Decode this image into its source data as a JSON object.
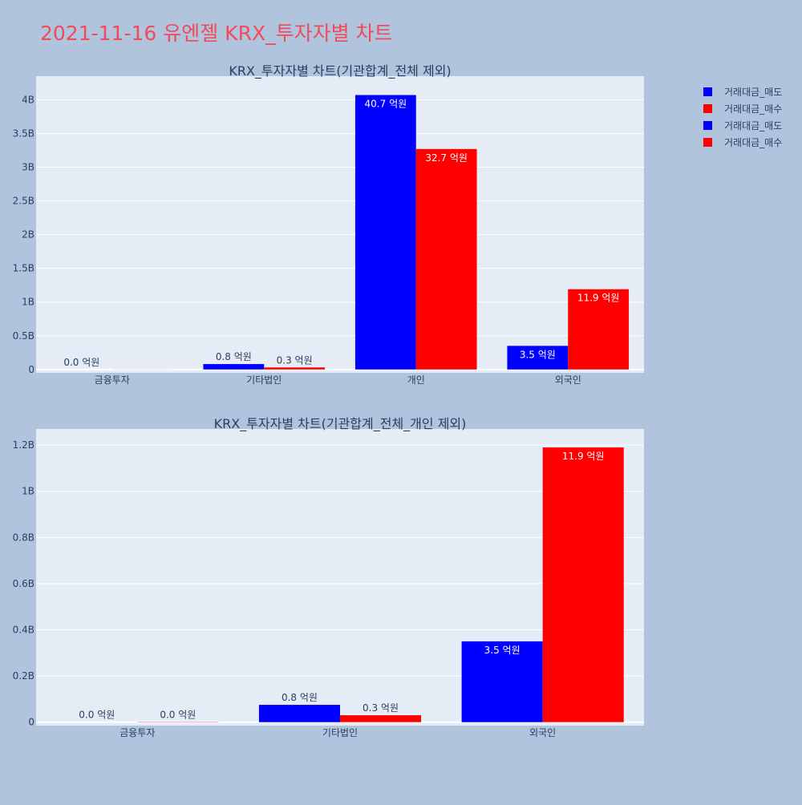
{
  "page_title": "2021-11-16 유엔젤 KRX_투자자별 차트",
  "colors": {
    "page_bg": "#b0c4de",
    "plot_bg": "#e5ecf6",
    "title": "#ef4b5b",
    "sell": "#0000ff",
    "buy": "#ff0000",
    "axis_text": "#2a3f5f"
  },
  "legend": {
    "position": "top-right",
    "items": [
      {
        "label": "거래대금_매도",
        "color": "#0000ff"
      },
      {
        "label": "거래대금_매수",
        "color": "#ff0000"
      },
      {
        "label": "거래대금_매도",
        "color": "#0000ff"
      },
      {
        "label": "거래대금_매수",
        "color": "#ff0000"
      }
    ]
  },
  "chart_data": [
    {
      "type": "bar",
      "title": "KRX_투자자별 차트(기관합계_전체 제외)",
      "categories": [
        "금융투자",
        "기타법인",
        "개인",
        "외국인"
      ],
      "series": [
        {
          "name": "거래대금_매도",
          "color": "#0000ff",
          "values": [
            0,
            0.08,
            4.07,
            0.35
          ],
          "labels": [
            "0.0 억원",
            "0.8 억원",
            "40.7 억원",
            "3.5 억원"
          ]
        },
        {
          "name": "거래대금_매수",
          "color": "#ff0000",
          "values": [
            0.001,
            0.03,
            3.27,
            1.19
          ],
          "labels": [
            "",
            "0.3 억원",
            "32.7 억원",
            "11.9 억원"
          ]
        }
      ],
      "ylim": [
        -0.05,
        4.35
      ],
      "yticks": [
        0,
        0.5,
        1,
        1.5,
        2,
        2.5,
        3,
        3.5,
        4
      ],
      "ytick_labels": [
        "0",
        "0.5B",
        "1B",
        "1.5B",
        "2B",
        "2.5B",
        "3B",
        "3.5B",
        "4B"
      ],
      "grid": true
    },
    {
      "type": "bar",
      "title": "KRX_투자자별 차트(기관합계_전체_개인 제외)",
      "categories": [
        "금융투자",
        "기타법인",
        "외국인"
      ],
      "series": [
        {
          "name": "거래대금_매도",
          "color": "#0000ff",
          "values": [
            0,
            0.075,
            0.35
          ],
          "labels": [
            "0.0 억원",
            "0.8 억원",
            "3.5 억원"
          ]
        },
        {
          "name": "거래대금_매수",
          "color": "#ff0000",
          "values": [
            0.001,
            0.03,
            1.19
          ],
          "labels": [
            "0.0 억원",
            "0.3 억원",
            "11.9 억원"
          ]
        }
      ],
      "ylim": [
        -0.015,
        1.27
      ],
      "yticks": [
        0,
        0.2,
        0.4,
        0.6,
        0.8,
        1,
        1.2
      ],
      "ytick_labels": [
        "0",
        "0.2B",
        "0.4B",
        "0.6B",
        "0.8B",
        "1B",
        "1.2B"
      ],
      "grid": true
    }
  ]
}
